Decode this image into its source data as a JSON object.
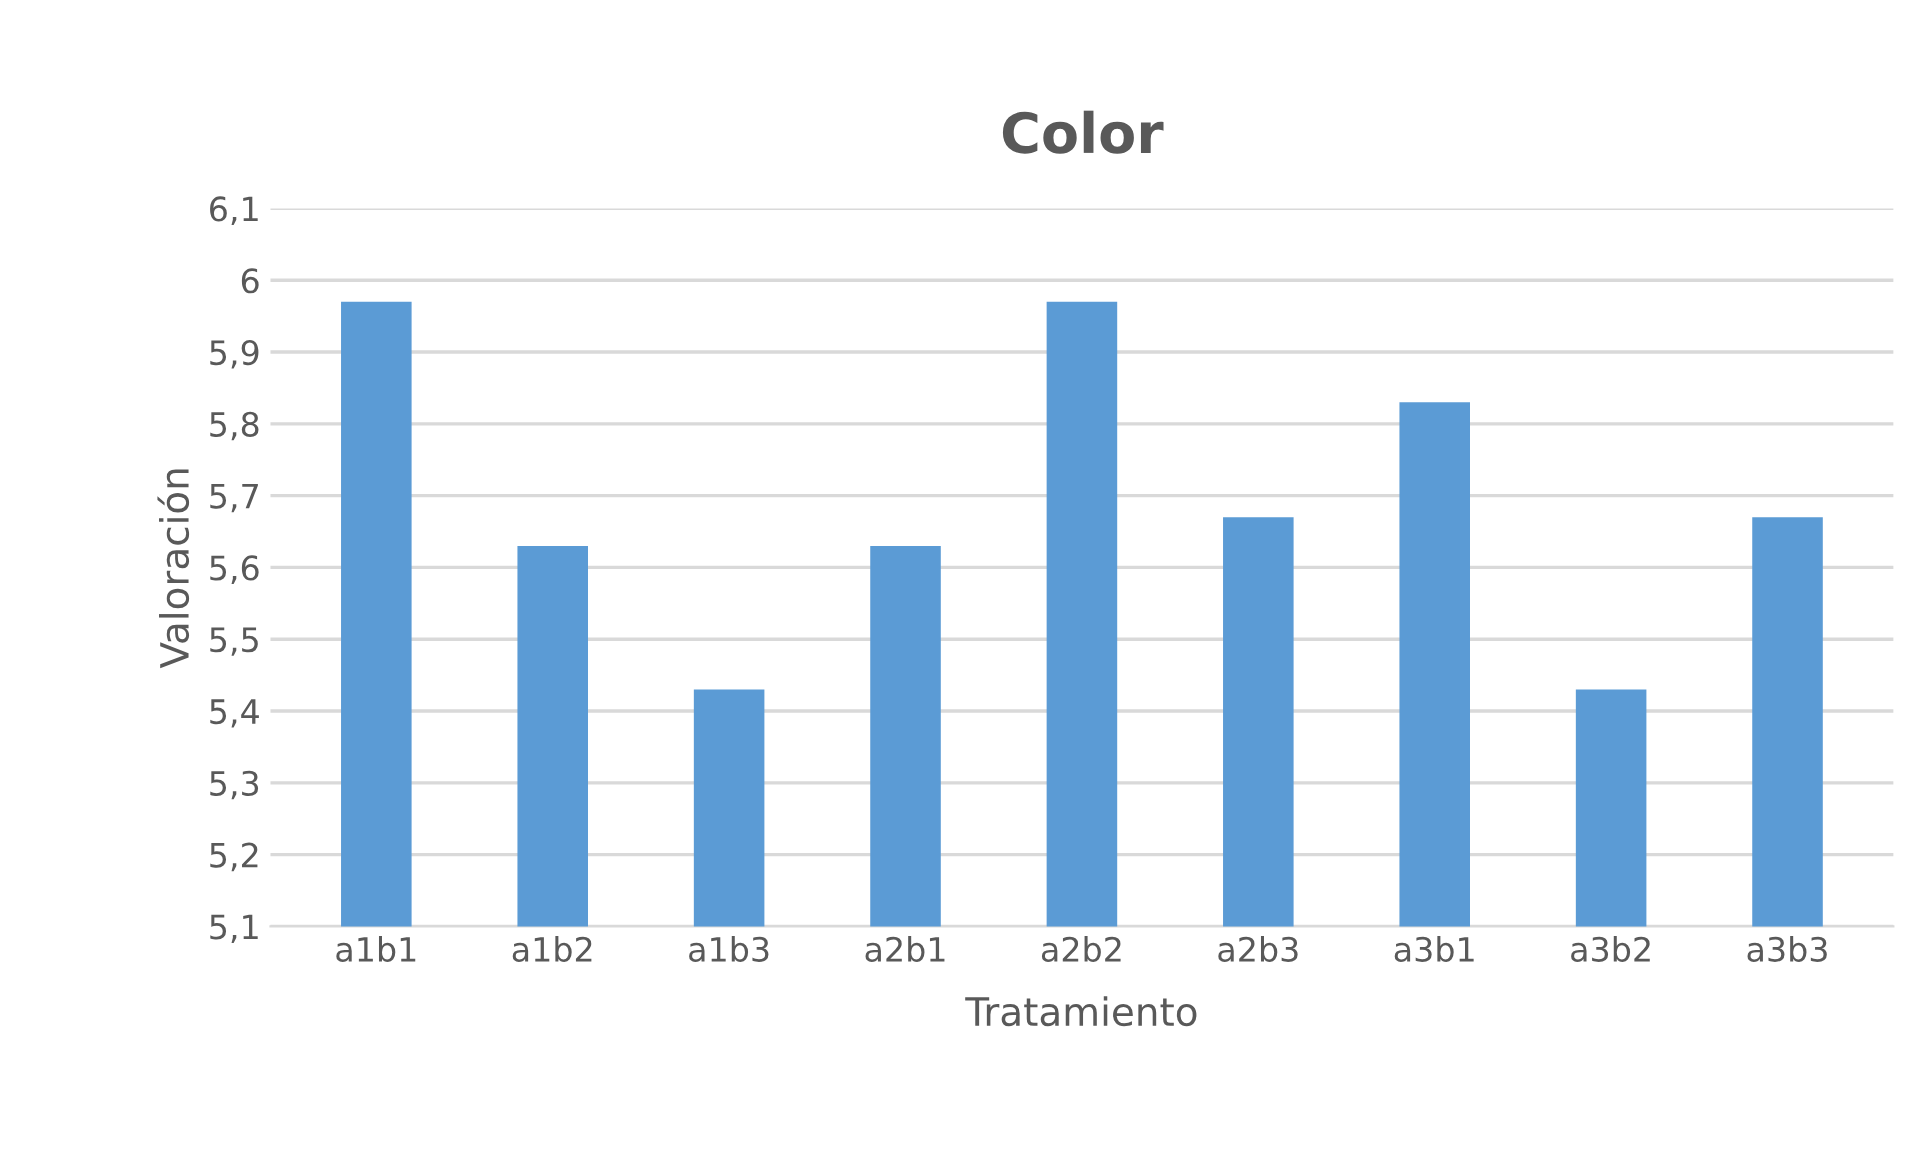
{
  "chart_data": {
    "type": "bar",
    "title": "Color",
    "xlabel": "Tratamiento",
    "ylabel": "Valoración",
    "categories": [
      "a1b1",
      "a1b2",
      "a1b3",
      "a2b1",
      "a2b2",
      "a2b3",
      "a3b1",
      "a3b2",
      "a3b3"
    ],
    "values": [
      5.97,
      5.63,
      5.43,
      5.63,
      5.97,
      5.67,
      5.83,
      5.43,
      5.67
    ],
    "color": "#5b9bd5",
    "ylim": [
      5.1,
      6.1
    ],
    "yticks": [
      {
        "value": 5.1,
        "label": "5,1"
      },
      {
        "value": 5.2,
        "label": "5,2"
      },
      {
        "value": 5.3,
        "label": "5,3"
      },
      {
        "value": 5.4,
        "label": "5,4"
      },
      {
        "value": 5.5,
        "label": "5,5"
      },
      {
        "value": 5.6,
        "label": "5,6"
      },
      {
        "value": 5.7,
        "label": "5,7"
      },
      {
        "value": 5.8,
        "label": "5,8"
      },
      {
        "value": 5.9,
        "label": "5,9"
      },
      {
        "value": 6,
        "label": "6"
      },
      {
        "value": 6.1,
        "label": "6,1"
      }
    ],
    "grid": "y"
  }
}
